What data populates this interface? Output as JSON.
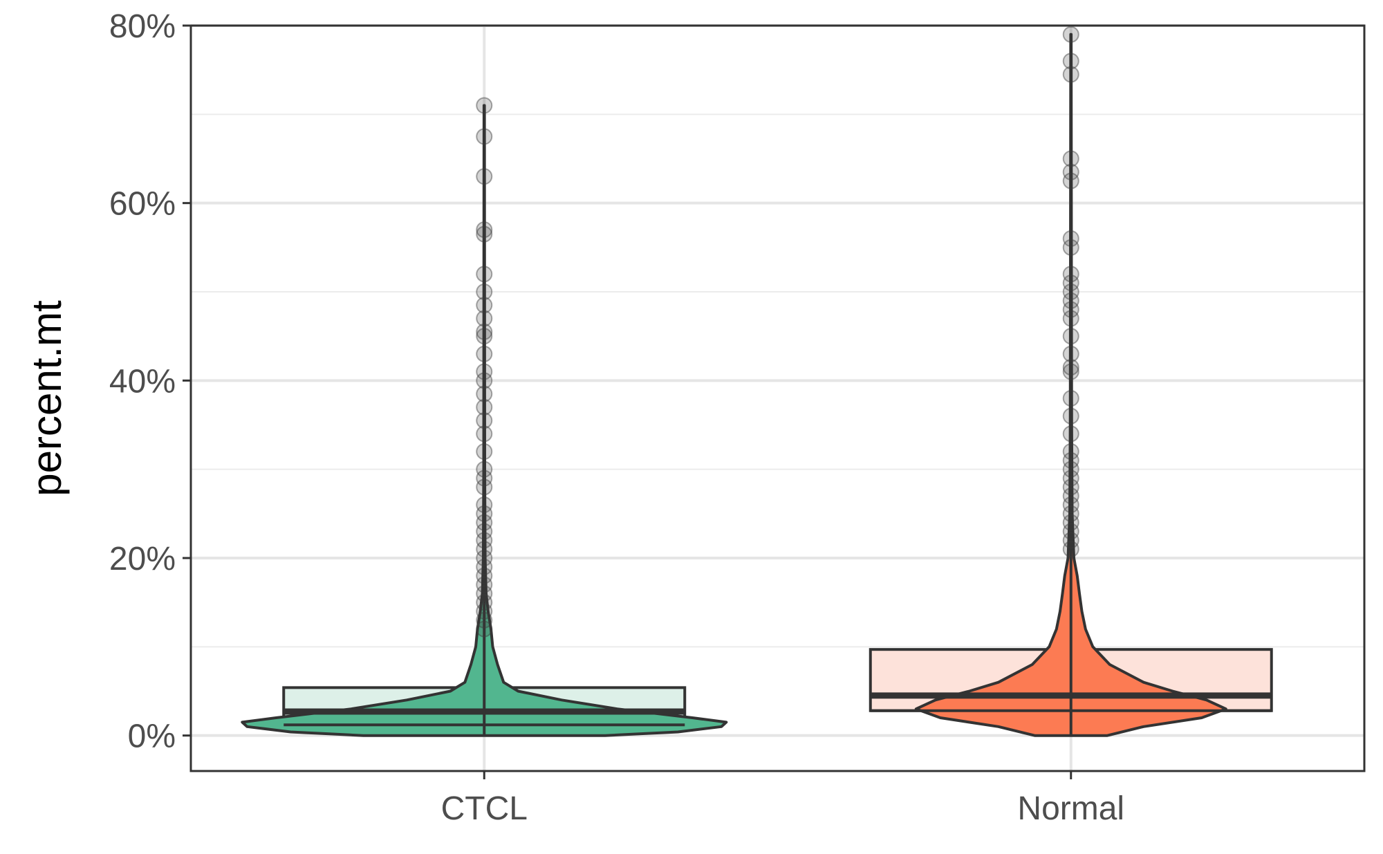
{
  "chart_data": {
    "type": "violin",
    "ylabel": "percent.mt",
    "xlabel": "",
    "ylim": [
      -0.04,
      0.8
    ],
    "yticks": [
      {
        "value": 0,
        "label": "0%"
      },
      {
        "value": 0.2,
        "label": "20%"
      },
      {
        "value": 0.4,
        "label": "40%"
      },
      {
        "value": 0.6,
        "label": "60%"
      },
      {
        "value": 0.8,
        "label": "80%"
      }
    ],
    "grid": true,
    "legend": "none",
    "categories": [
      "CTCL",
      "Normal"
    ],
    "series": [
      {
        "category": "CTCL",
        "fill": "#52b68f",
        "box_fill": "#ddf0e8",
        "box": {
          "q1": 0.012,
          "median": 0.027,
          "q3": 0.054,
          "whisker_low": 0.0,
          "whisker_high": 0.71
        },
        "density": [
          [
            0.0,
            0.5
          ],
          [
            0.004,
            0.8
          ],
          [
            0.01,
            0.98
          ],
          [
            0.015,
            1.0
          ],
          [
            0.02,
            0.86
          ],
          [
            0.03,
            0.55
          ],
          [
            0.04,
            0.32
          ],
          [
            0.05,
            0.14
          ],
          [
            0.06,
            0.08
          ],
          [
            0.08,
            0.055
          ],
          [
            0.1,
            0.035
          ],
          [
            0.12,
            0.028
          ],
          [
            0.14,
            0.016
          ],
          [
            0.16,
            0.008
          ],
          [
            0.2,
            0.004
          ],
          [
            0.3,
            0.002
          ],
          [
            0.71,
            0.001
          ]
        ],
        "outliers": [
          0.71,
          0.675,
          0.63,
          0.57,
          0.565,
          0.52,
          0.5,
          0.485,
          0.47,
          0.455,
          0.45,
          0.43,
          0.41,
          0.4,
          0.385,
          0.37,
          0.355,
          0.34,
          0.32,
          0.3,
          0.29,
          0.28,
          0.26,
          0.25,
          0.24,
          0.23,
          0.22,
          0.21,
          0.2,
          0.19,
          0.18,
          0.17,
          0.16,
          0.15,
          0.14,
          0.13,
          0.12
        ]
      },
      {
        "category": "Normal",
        "fill": "#fc7b53",
        "box_fill": "#fde2da",
        "box": {
          "q1": 0.028,
          "median": 0.045,
          "q3": 0.097,
          "whisker_low": 0.0,
          "whisker_high": 0.79
        },
        "density": [
          [
            0.0,
            0.15
          ],
          [
            0.01,
            0.3
          ],
          [
            0.02,
            0.54
          ],
          [
            0.03,
            0.64
          ],
          [
            0.04,
            0.56
          ],
          [
            0.05,
            0.42
          ],
          [
            0.06,
            0.3
          ],
          [
            0.08,
            0.16
          ],
          [
            0.1,
            0.09
          ],
          [
            0.12,
            0.06
          ],
          [
            0.14,
            0.045
          ],
          [
            0.16,
            0.035
          ],
          [
            0.18,
            0.026
          ],
          [
            0.2,
            0.012
          ],
          [
            0.25,
            0.005
          ],
          [
            0.35,
            0.003
          ],
          [
            0.5,
            0.002
          ],
          [
            0.79,
            0.001
          ]
        ],
        "outliers": [
          0.79,
          0.76,
          0.745,
          0.65,
          0.635,
          0.625,
          0.56,
          0.55,
          0.52,
          0.51,
          0.5,
          0.49,
          0.48,
          0.47,
          0.45,
          0.43,
          0.415,
          0.41,
          0.38,
          0.36,
          0.34,
          0.32,
          0.31,
          0.3,
          0.29,
          0.28,
          0.27,
          0.26,
          0.25,
          0.24,
          0.23,
          0.22,
          0.21
        ]
      }
    ]
  }
}
